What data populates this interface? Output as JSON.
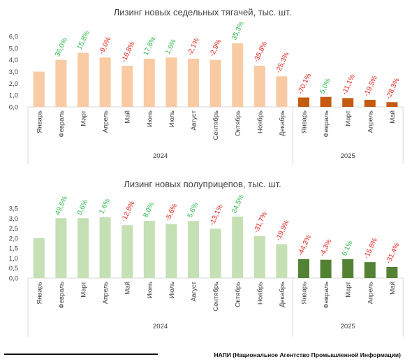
{
  "footer": "НАПИ (Национальное Агентство Промышленной Информации)",
  "colors": {
    "positive": "#2db84d",
    "negative": "#e32119"
  },
  "chart_data": [
    {
      "type": "bar",
      "title": "Лизинг новых седельных тягачей, тыс. шт.",
      "ylim": [
        0,
        6
      ],
      "yticks": [
        "0,0",
        "1,0",
        "2,0",
        "3,0",
        "4,0",
        "5,0",
        "6,0"
      ],
      "grid": false,
      "groups": [
        {
          "year": "2024",
          "color": "#f8cba4",
          "categories": [
            "Январь",
            "Февраль",
            "Март",
            "Апрель",
            "Май",
            "Июнь",
            "Июль",
            "Август",
            "Сентябрь",
            "Октябрь",
            "Ноябрь",
            "Декабрь"
          ],
          "values": [
            3.0,
            4.0,
            4.6,
            4.2,
            3.5,
            4.1,
            4.2,
            4.1,
            4.0,
            5.4,
            3.5,
            2.6
          ],
          "changes": [
            "",
            "36,0%",
            "15,8%",
            "-9,0%",
            "-16,8%",
            "17,8%",
            "1,6%",
            "-2,1%",
            "-2,9%",
            "35,3%",
            "-35,8%",
            "-25,3%"
          ]
        },
        {
          "year": "2025",
          "color": "#c55a11",
          "categories": [
            "Январь",
            "Февраль",
            "Март",
            "Апрель",
            "Май"
          ],
          "values": [
            0.8,
            0.85,
            0.75,
            0.6,
            0.4
          ],
          "changes": [
            "-70,1%",
            "5,0%",
            "-11,1%",
            "-19,5%",
            "-28,3%"
          ]
        }
      ]
    },
    {
      "type": "bar",
      "title": "Лизинг новых полуприцепов, тыс. шт.",
      "ylim": [
        0,
        3.5
      ],
      "yticks": [
        "0,0",
        "0,5",
        "1,0",
        "1,5",
        "2,0",
        "2,5",
        "3,0",
        "3,5"
      ],
      "grid": false,
      "groups": [
        {
          "year": "2024",
          "color": "#c5e0b4",
          "categories": [
            "Январь",
            "Февраль",
            "Март",
            "Апрель",
            "Май",
            "Июнь",
            "Июль",
            "Август",
            "Сентябрь",
            "Октябрь",
            "Ноябрь",
            "Декабрь"
          ],
          "values": [
            2.0,
            3.0,
            3.0,
            3.05,
            2.65,
            2.87,
            2.7,
            2.86,
            2.47,
            3.08,
            2.1,
            1.7
          ],
          "changes": [
            "",
            "49,6%",
            "0,6%",
            "1,6%",
            "-12,8%",
            "8,0%",
            "-5,6%",
            "5,6%",
            "-13,1%",
            "24,5%",
            "-31,7%",
            "-19,9%"
          ]
        },
        {
          "year": "2025",
          "color": "#548235",
          "categories": [
            "Январь",
            "Февраль",
            "Март",
            "Апрель",
            "Май"
          ],
          "values": [
            0.95,
            0.92,
            0.95,
            0.8,
            0.56
          ],
          "changes": [
            "-44,2%",
            "-4,3%",
            "6,1%",
            "-15,8%",
            "-31,4%"
          ]
        }
      ]
    }
  ]
}
